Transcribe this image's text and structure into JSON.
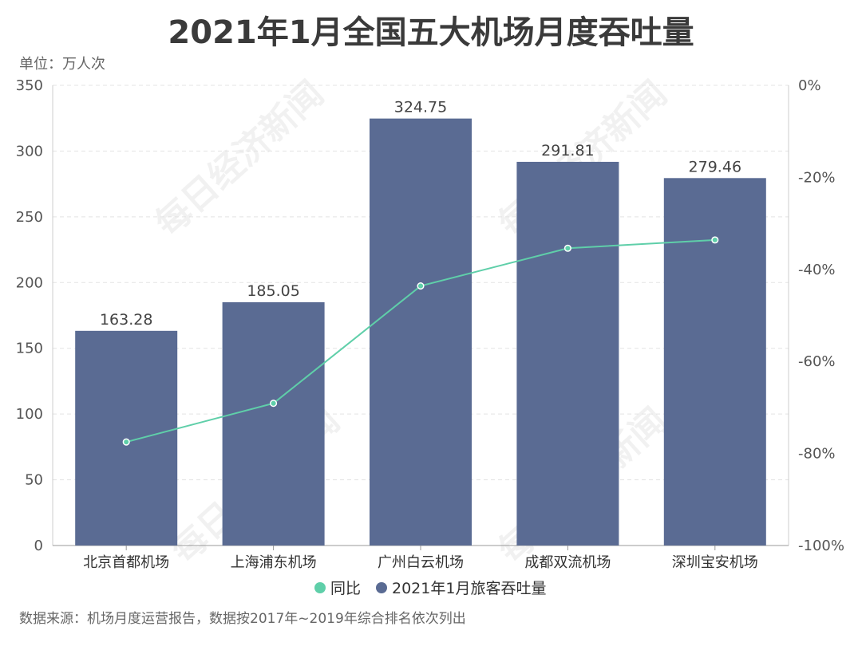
{
  "chart_data": {
    "type": "bar",
    "title": "2021年1月全国五大机场月度吞吐量",
    "unit_label": "单位：万人次",
    "categories": [
      "北京首都机场",
      "上海浦东机场",
      "广州白云机场",
      "成都双流机场",
      "深圳宝安机场"
    ],
    "series": [
      {
        "name": "2021年1月旅客吞吐量",
        "kind": "bar",
        "axis": "left",
        "color": "#5a6b93",
        "values": [
          163.28,
          185.05,
          324.75,
          291.81,
          279.46
        ],
        "labels": [
          "163.28",
          "185.05",
          "324.75",
          "291.81",
          "279.46"
        ]
      },
      {
        "name": "同比",
        "kind": "line",
        "axis": "right",
        "color": "#5fcfa9",
        "values": [
          -77.5,
          -69.1,
          -43.6,
          -35.4,
          -33.6
        ]
      }
    ],
    "y_left": {
      "min": 0,
      "max": 350,
      "ticks": [
        "0",
        "50",
        "100",
        "150",
        "200",
        "250",
        "300",
        "350"
      ]
    },
    "y_right": {
      "min": -100,
      "max": 0,
      "ticks": [
        "-100%",
        "-80%",
        "-60%",
        "-40%",
        "-20%",
        "0%"
      ]
    },
    "grid": true,
    "legend_position": "bottom"
  },
  "watermark": "每日经济新闻",
  "source_note": "数据来源：机场月度运营报告，数据按2017年~2019年综合排名依次列出"
}
